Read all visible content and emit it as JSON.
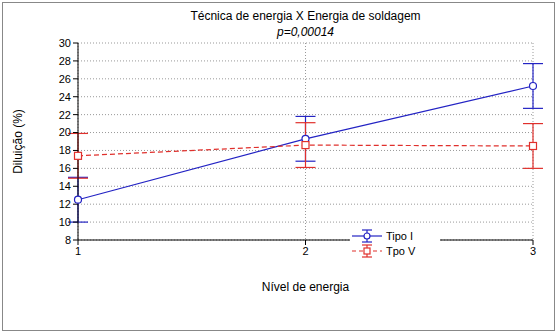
{
  "chart_data": {
    "type": "line",
    "title": "Técnica de energia X Energia de soldagem",
    "subtitle": "p=0,00014",
    "x_label": "Nível de energia",
    "y_label": "Diluição (%)",
    "categories": [
      1,
      2,
      3
    ],
    "series": [
      {
        "name": "Tipo I",
        "color": "#2424c4",
        "marker": "circle",
        "line_style": "solid",
        "values": [
          12.5,
          19.3,
          25.2
        ],
        "errors": [
          2.5,
          2.5,
          2.5
        ]
      },
      {
        "name": "Tpo V",
        "color": "#e0302c",
        "marker": "square",
        "line_style": "dashed",
        "values": [
          17.4,
          18.6,
          18.5
        ],
        "errors": [
          2.5,
          2.5,
          2.5
        ]
      }
    ],
    "ylim": [
      8,
      30
    ],
    "yticks": [
      8,
      10,
      12,
      14,
      16,
      18,
      20,
      22,
      24,
      26,
      28,
      30
    ],
    "grid": true,
    "legend": "lower right"
  }
}
